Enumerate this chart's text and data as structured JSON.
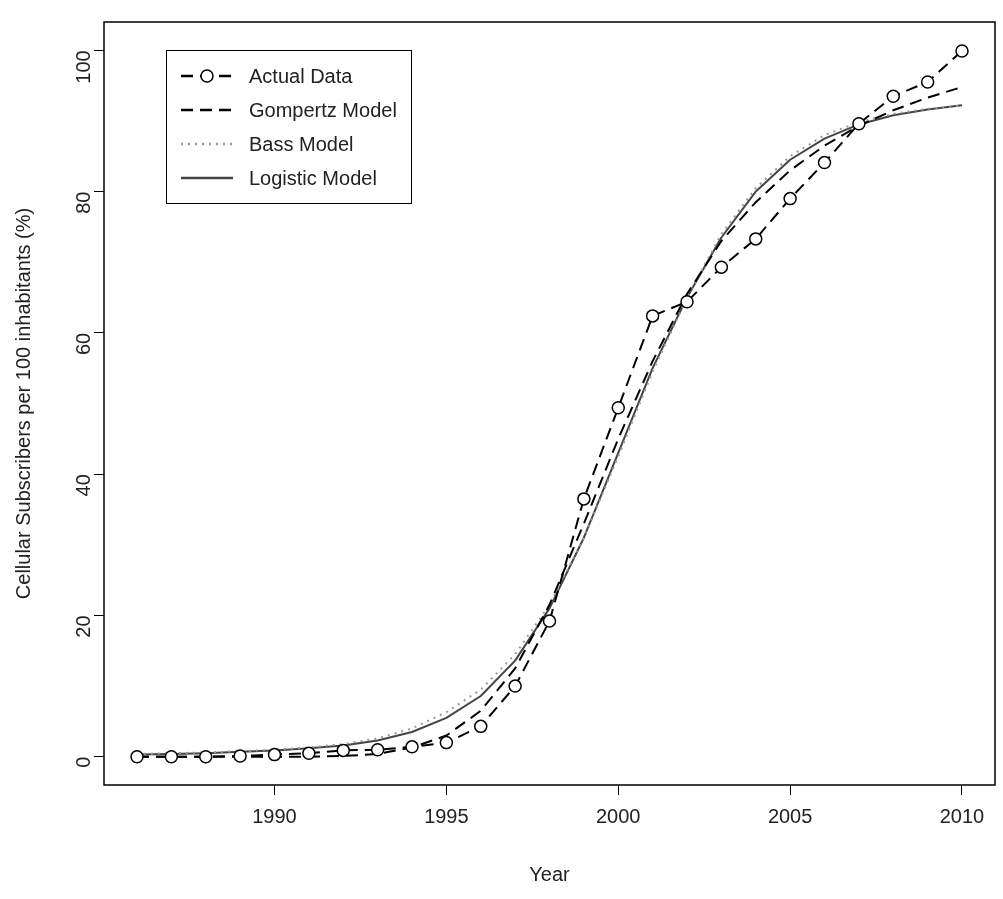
{
  "chart_data": {
    "type": "line",
    "xlabel": "Year",
    "ylabel": "Cellular Subscribers per 100 inhabitants (%)",
    "x": [
      1986,
      1987,
      1988,
      1989,
      1990,
      1991,
      1992,
      1993,
      1994,
      1995,
      1996,
      1997,
      1998,
      1999,
      2000,
      2001,
      2002,
      2003,
      2004,
      2005,
      2006,
      2007,
      2008,
      2009,
      2010
    ],
    "xlim": [
      1985.04,
      2010.96
    ],
    "xticks": [
      1990,
      1995,
      2000,
      2005,
      2010
    ],
    "ylim": [
      -4,
      104
    ],
    "yticks": [
      0,
      20,
      40,
      60,
      80,
      100
    ],
    "grid": false,
    "legend": "top left",
    "series": [
      {
        "name": "Actual Data",
        "color": "#000000",
        "line_style": "dashed",
        "marker": "circle",
        "values": [
          0,
          0,
          0,
          0.1,
          0.3,
          0.5,
          0.9,
          1,
          1.4,
          2,
          4.3,
          10,
          19.2,
          36.5,
          49.4,
          62.4,
          64.4,
          69.3,
          73.3,
          79,
          84.1,
          89.6,
          93.5,
          95.5,
          99.9
        ]
      },
      {
        "name": "Gompertz Model",
        "color": "#000000",
        "line_style": "dashed",
        "marker": "none",
        "values": [
          0,
          0,
          0,
          0,
          0,
          0,
          0.1,
          0.4,
          1.3,
          3,
          6.5,
          12.5,
          21.5,
          33,
          45,
          56,
          65.5,
          73,
          78.5,
          83,
          86.5,
          89.3,
          91.5,
          93.3,
          94.8
        ]
      },
      {
        "name": "Bass Model",
        "color": "#999999",
        "line_style": "dotted",
        "marker": "none",
        "values": [
          0.4,
          0.5,
          0.6,
          0.8,
          1,
          1.3,
          1.8,
          2.6,
          4,
          6.3,
          9.5,
          14.5,
          21.5,
          31,
          42.5,
          54.5,
          65,
          74,
          80.5,
          85,
          88,
          89.8,
          91,
          91.7,
          92.2
        ]
      },
      {
        "name": "Logistic Model",
        "color": "#444444",
        "line_style": "solid",
        "marker": "none",
        "values": [
          0.3,
          0.4,
          0.5,
          0.7,
          0.9,
          1.2,
          1.6,
          2.3,
          3.5,
          5.5,
          8.6,
          13.6,
          21,
          31,
          43,
          55,
          65,
          73.5,
          80,
          84.5,
          87.5,
          89.5,
          90.8,
          91.6,
          92.2
        ]
      }
    ]
  }
}
